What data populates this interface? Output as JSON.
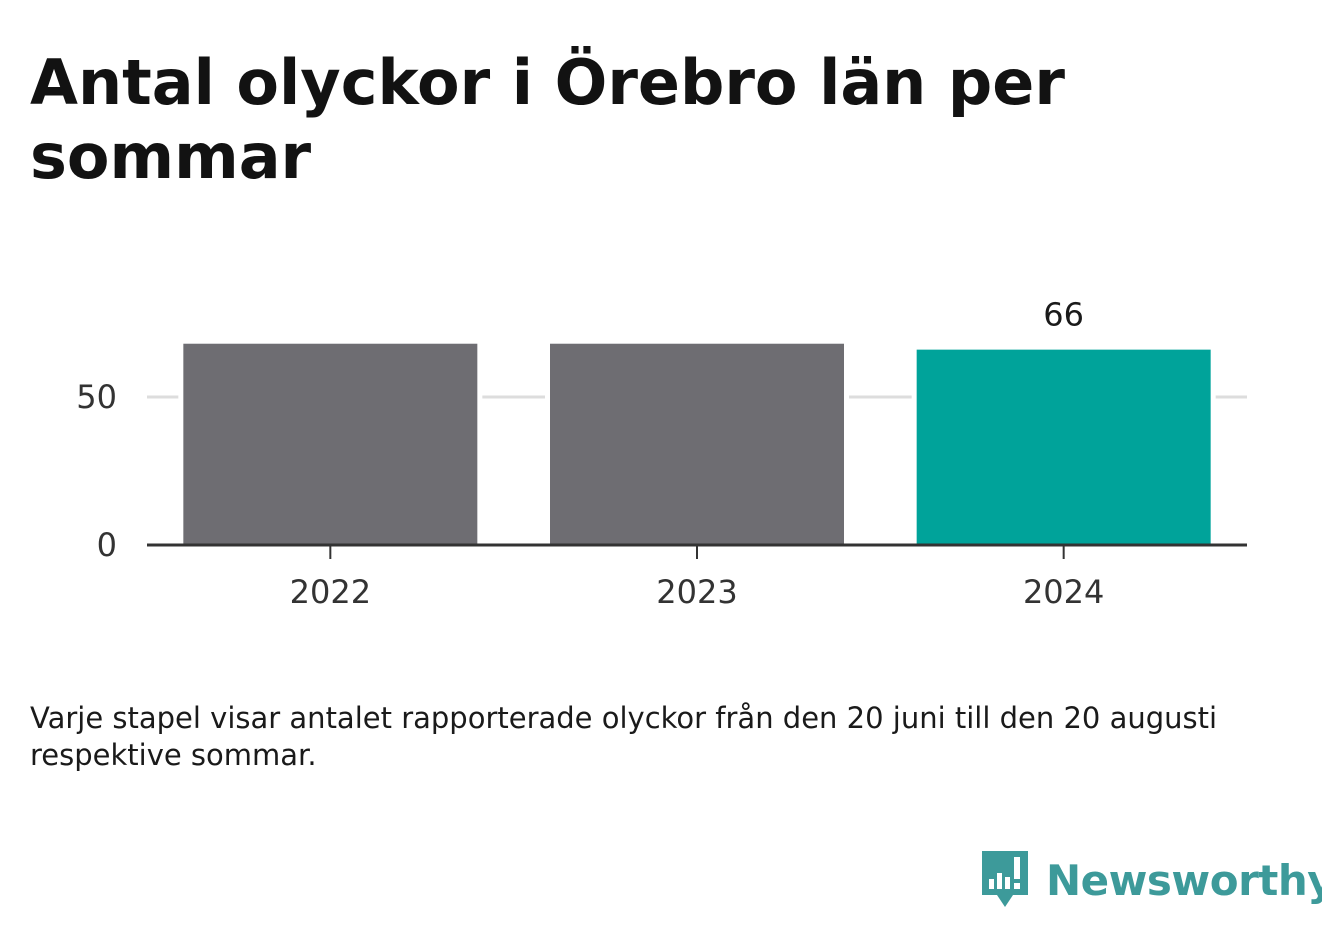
{
  "title": "Antal olyckor i Örebro län per sommar",
  "footnote": "Varje stapel visar antalet rapporterade olyckor från den 20 juni till den 20 augusti respektive sommar.",
  "brand": {
    "name": "Newsworthy",
    "icon": "newsworthy-logo-icon",
    "color": "#3d9a9a"
  },
  "colors": {
    "default_bar": "#6e6d72",
    "highlight_bar": "#00a39a",
    "gridline": "#dddddd",
    "axis": "#333333"
  },
  "chart_data": {
    "type": "bar",
    "categories": [
      "2022",
      "2023",
      "2024"
    ],
    "values": [
      68,
      68,
      66
    ],
    "highlight_index": 2,
    "data_labels": [
      null,
      null,
      "66"
    ],
    "yticks": [
      0,
      50
    ],
    "ylim": [
      0,
      100
    ],
    "grid": true,
    "xlabel": "",
    "ylabel": ""
  }
}
